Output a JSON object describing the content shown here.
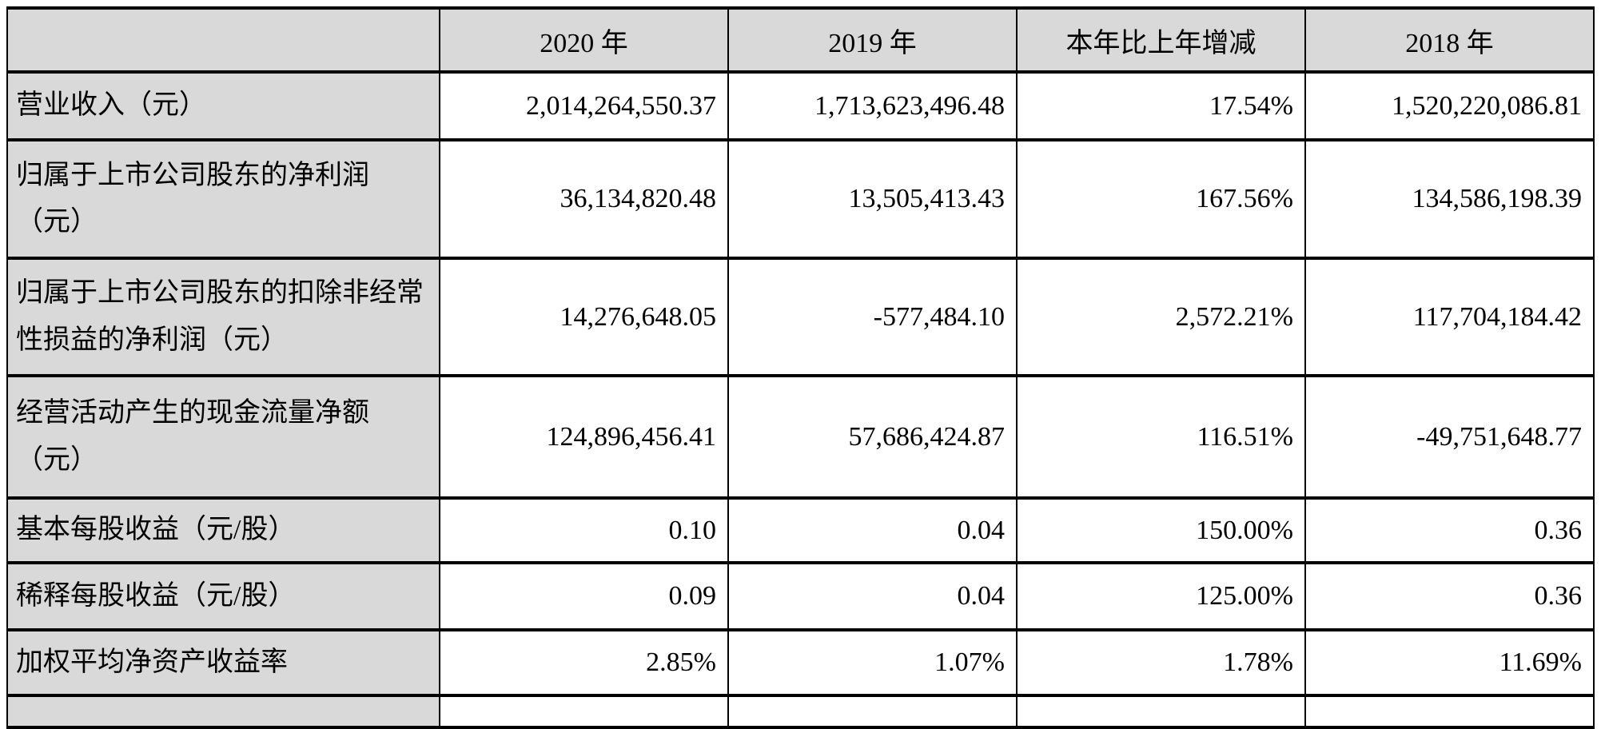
{
  "table": {
    "colors": {
      "header_bg": "#d9d9d9",
      "label_column_bg": "#d9d9d9",
      "cell_bg": "#ffffff",
      "border": "#000000",
      "text": "#000000"
    },
    "columns": [
      "",
      "2020 年",
      "2019 年",
      "本年比上年增减",
      "2018 年"
    ],
    "rows": [
      {
        "label": "营业收入（元）",
        "values": [
          "2,014,264,550.37",
          "1,713,623,496.48",
          "17.54%",
          "1,520,220,086.81"
        ]
      },
      {
        "label": "归属于上市公司股东的净利润（元）",
        "values": [
          "36,134,820.48",
          "13,505,413.43",
          "167.56%",
          "134,586,198.39"
        ]
      },
      {
        "label": "归属于上市公司股东的扣除非经常性损益的净利润（元）",
        "values": [
          "14,276,648.05",
          "-577,484.10",
          "2,572.21%",
          "117,704,184.42"
        ]
      },
      {
        "label": "经营活动产生的现金流量净额（元）",
        "values": [
          "124,896,456.41",
          "57,686,424.87",
          "116.51%",
          "-49,751,648.77"
        ]
      },
      {
        "label": "基本每股收益（元/股）",
        "values": [
          "0.10",
          "0.04",
          "150.00%",
          "0.36"
        ]
      },
      {
        "label": "稀释每股收益（元/股）",
        "values": [
          "0.09",
          "0.04",
          "125.00%",
          "0.36"
        ]
      },
      {
        "label": "加权平均净资产收益率",
        "values": [
          "2.85%",
          "1.07%",
          "1.78%",
          "11.69%"
        ]
      }
    ],
    "partial_row": {
      "label": "",
      "values": [
        "",
        "",
        "",
        ""
      ]
    }
  }
}
